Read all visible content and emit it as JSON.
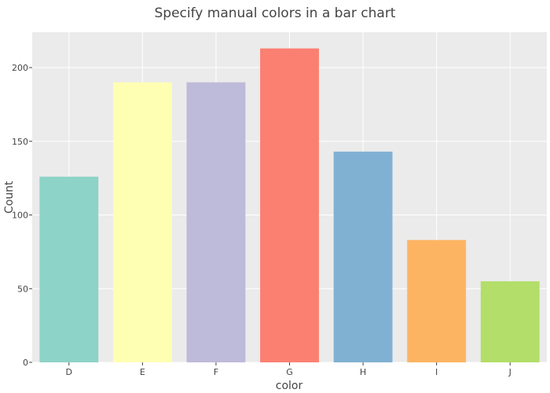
{
  "chart_data": {
    "type": "bar",
    "title": "Specify manual colors in a bar chart",
    "xlabel": "color",
    "ylabel": "Count",
    "categories": [
      "D",
      "E",
      "F",
      "G",
      "H",
      "I",
      "J"
    ],
    "values": [
      126,
      190,
      190,
      213,
      143,
      83,
      55
    ],
    "colors": [
      "#8DD3C7",
      "#FFFFB3",
      "#BEBADA",
      "#FB8072",
      "#80B1D3",
      "#FDB462",
      "#B3DE69"
    ],
    "ylim": [
      0,
      224
    ],
    "yticks": [
      0,
      50,
      100,
      150,
      200
    ],
    "yticklabels": [
      "0",
      "50",
      "100",
      "150",
      "200"
    ],
    "grid": true,
    "legend": "none",
    "plot_background": "#EBEBEB",
    "grid_color": "#FFFFFF"
  }
}
